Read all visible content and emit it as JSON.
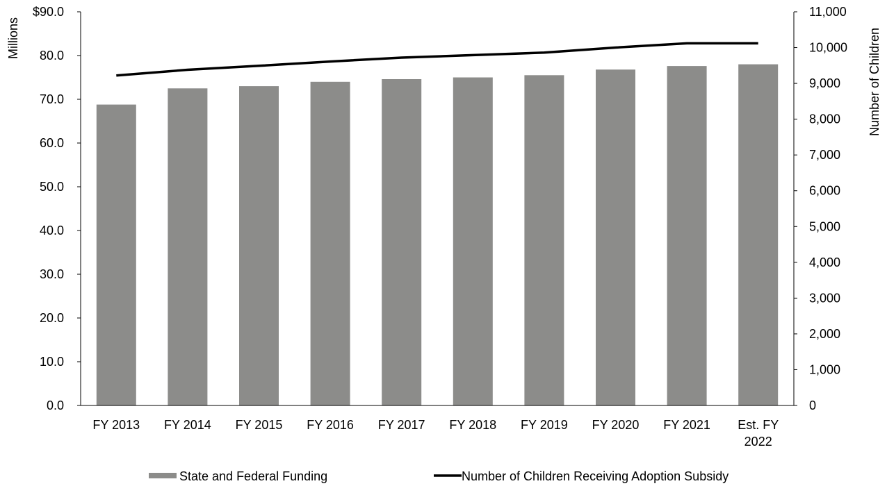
{
  "chart_data": {
    "type": "bar",
    "categories": [
      [
        "FY 2013"
      ],
      [
        "FY 2014"
      ],
      [
        "FY 2015"
      ],
      [
        "FY 2016"
      ],
      [
        "FY 2017"
      ],
      [
        "FY 2018"
      ],
      [
        "FY 2019"
      ],
      [
        "FY 2020"
      ],
      [
        "FY 2021"
      ],
      [
        "Est. FY",
        "2022"
      ]
    ],
    "series": [
      {
        "name": "State and Federal Funding",
        "type": "bar",
        "axis": "left",
        "color": "#8c8c8a",
        "values": [
          68.8,
          72.5,
          73.0,
          74.0,
          74.6,
          75.0,
          75.5,
          76.8,
          77.6,
          78.0
        ]
      },
      {
        "name": "Number of Children Receiving Adoption Subsidy",
        "type": "line",
        "axis": "right",
        "color": "#000000",
        "values": [
          9220,
          9380,
          9490,
          9610,
          9720,
          9790,
          9860,
          10000,
          10120,
          10120
        ]
      }
    ],
    "left_axis": {
      "title": "Millions",
      "ylim": [
        0,
        90
      ],
      "ticks": [
        "0.0",
        "10.0",
        "20.0",
        "30.0",
        "40.0",
        "50.0",
        "60.0",
        "70.0",
        "80.0",
        "$90.0"
      ]
    },
    "right_axis": {
      "title": "Number of Children",
      "ylim": [
        0,
        11000
      ],
      "ticks": [
        "0",
        "1,000",
        "2,000",
        "3,000",
        "4,000",
        "5,000",
        "6,000",
        "7,000",
        "8,000",
        "9,000",
        "10,000",
        "11,000"
      ]
    },
    "grid": false,
    "legend_position": "bottom"
  }
}
